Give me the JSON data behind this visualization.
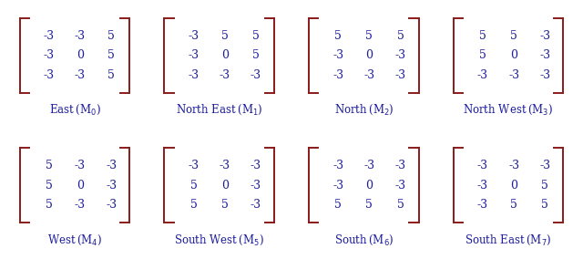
{
  "matrices": [
    [
      [
        -3,
        -3,
        5
      ],
      [
        -3,
        0,
        5
      ],
      [
        -3,
        -3,
        5
      ]
    ],
    [
      [
        -3,
        5,
        5
      ],
      [
        -3,
        0,
        5
      ],
      [
        -3,
        -3,
        -3
      ]
    ],
    [
      [
        5,
        5,
        5
      ],
      [
        -3,
        0,
        -3
      ],
      [
        -3,
        -3,
        -3
      ]
    ],
    [
      [
        5,
        5,
        -3
      ],
      [
        5,
        0,
        -3
      ],
      [
        -3,
        -3,
        -3
      ]
    ],
    [
      [
        5,
        -3,
        -3
      ],
      [
        5,
        0,
        -3
      ],
      [
        5,
        -3,
        -3
      ]
    ],
    [
      [
        -3,
        -3,
        -3
      ],
      [
        5,
        0,
        -3
      ],
      [
        5,
        5,
        -3
      ]
    ],
    [
      [
        -3,
        -3,
        -3
      ],
      [
        -3,
        0,
        -3
      ],
      [
        5,
        5,
        5
      ]
    ],
    [
      [
        -3,
        -3,
        -3
      ],
      [
        -3,
        0,
        5
      ],
      [
        -3,
        5,
        5
      ]
    ]
  ],
  "labels": [
    "East (M$_0$)",
    "North East (M$_1$)",
    "North (M$_2$)",
    "North West (M$_3$)",
    "West (M$_4$)",
    "South West (M$_5$)",
    "South (M$_6$)",
    "South East (M$_7$)"
  ],
  "text_color": "#1c1c9c",
  "bracket_color": "#8b1a1a",
  "background_color": "#ffffff",
  "fontsize_matrix": 9,
  "fontsize_label": 8.5
}
